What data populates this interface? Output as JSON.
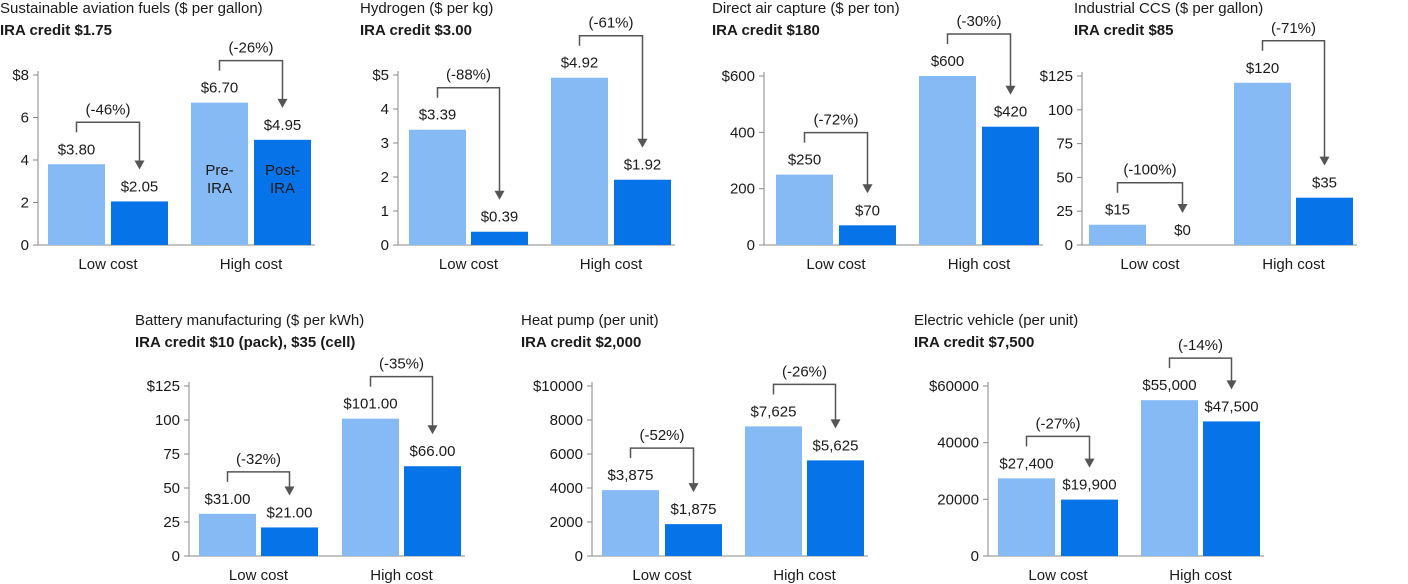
{
  "colors": {
    "pre": "#86baf5",
    "post": "#0773e8",
    "axis": "#888888",
    "arrow": "#555555",
    "text": "#1a1a1a",
    "inbar_text": "#ffffff"
  },
  "chart_data": [
    {
      "type": "bar",
      "title": "Sustainable aviation fuels ($ per gallon)",
      "subtitle": "IRA credit $1.75",
      "categories": [
        "Low cost",
        "High cost"
      ],
      "series": [
        {
          "name": "Pre-IRA",
          "values": [
            3.8,
            6.7
          ]
        },
        {
          "name": "Post-IRA",
          "values": [
            2.05,
            4.95
          ]
        }
      ],
      "value_labels": [
        [
          "$3.80",
          "$2.05"
        ],
        [
          "$6.70",
          "$4.95"
        ]
      ],
      "changes": [
        "(-46%)",
        "(-26%)"
      ],
      "yticks": [
        0,
        2,
        4,
        6,
        8
      ],
      "ytick_labels": [
        "0",
        "2",
        "4",
        "6",
        "$8"
      ],
      "ylim": [
        0,
        8
      ],
      "inbar_labels": [
        "Pre-IRA",
        "Post-IRA"
      ]
    },
    {
      "type": "bar",
      "title": "Hydrogen ($ per kg)",
      "subtitle": "IRA credit $3.00",
      "categories": [
        "Low cost",
        "High cost"
      ],
      "series": [
        {
          "values": [
            3.39,
            4.92
          ]
        },
        {
          "values": [
            0.39,
            1.92
          ]
        }
      ],
      "value_labels": [
        [
          "$3.39",
          "$0.39"
        ],
        [
          "$4.92",
          "$1.92"
        ]
      ],
      "changes": [
        "(-88%)",
        "(-61%)"
      ],
      "yticks": [
        0,
        1,
        2,
        3,
        4,
        5
      ],
      "ytick_labels": [
        "0",
        "1",
        "2",
        "3",
        "4",
        "$5"
      ],
      "ylim": [
        0,
        5
      ]
    },
    {
      "type": "bar",
      "title": "Direct air capture ($ per ton)",
      "subtitle": "IRA credit $180",
      "categories": [
        "Low cost",
        "High cost"
      ],
      "series": [
        {
          "values": [
            250,
            600
          ]
        },
        {
          "values": [
            70,
            420
          ]
        }
      ],
      "value_labels": [
        [
          "$250",
          "$70"
        ],
        [
          "$600",
          "$420"
        ]
      ],
      "changes": [
        "(-72%)",
        "(-30%)"
      ],
      "yticks": [
        0,
        200,
        400,
        600
      ],
      "ytick_labels": [
        "0",
        "200",
        "400",
        "$600"
      ],
      "ylim": [
        0,
        600
      ]
    },
    {
      "type": "bar",
      "title": "Industrial CCS ($ per gallon)",
      "subtitle": "IRA credit $85",
      "categories": [
        "Low cost",
        "High cost"
      ],
      "series": [
        {
          "values": [
            15,
            120
          ]
        },
        {
          "values": [
            0,
            35
          ]
        }
      ],
      "value_labels": [
        [
          "$15",
          "$0"
        ],
        [
          "$120",
          "$35"
        ]
      ],
      "changes": [
        "(-100%)",
        "(-71%)"
      ],
      "yticks": [
        0,
        25,
        50,
        75,
        100,
        125
      ],
      "ytick_labels": [
        "0",
        "25",
        "50",
        "75",
        "100",
        "$125"
      ],
      "ylim": [
        0,
        125
      ]
    },
    {
      "type": "bar",
      "title": "Battery manufacturing ($ per kWh)",
      "subtitle": "IRA credit $10 (pack), $35 (cell)",
      "categories": [
        "Low cost",
        "High cost"
      ],
      "series": [
        {
          "values": [
            31,
            101
          ]
        },
        {
          "values": [
            21,
            66
          ]
        }
      ],
      "value_labels": [
        [
          "$31.00",
          "$21.00"
        ],
        [
          "$101.00",
          "$66.00"
        ]
      ],
      "changes": [
        "(-32%)",
        "(-35%)"
      ],
      "yticks": [
        0,
        25,
        50,
        75,
        100,
        125
      ],
      "ytick_labels": [
        "0",
        "25",
        "50",
        "75",
        "100",
        "$125"
      ],
      "ylim": [
        0,
        125
      ]
    },
    {
      "type": "bar",
      "title": "Heat pump (per unit)",
      "subtitle": "IRA credit $2,000",
      "categories": [
        "Low cost",
        "High cost"
      ],
      "series": [
        {
          "values": [
            3875,
            7625
          ]
        },
        {
          "values": [
            1875,
            5625
          ]
        }
      ],
      "value_labels": [
        [
          "$3,875",
          "$1,875"
        ],
        [
          "$7,625",
          "$5,625"
        ]
      ],
      "changes": [
        "(-52%)",
        "(-26%)"
      ],
      "yticks": [
        0,
        2000,
        4000,
        6000,
        8000,
        10000
      ],
      "ytick_labels": [
        "0",
        "2000",
        "4000",
        "6000",
        "8000",
        "$10000"
      ],
      "ylim": [
        0,
        10000
      ]
    },
    {
      "type": "bar",
      "title": "Electric vehicle (per unit)",
      "subtitle": "IRA credit $7,500",
      "categories": [
        "Low cost",
        "High cost"
      ],
      "series": [
        {
          "values": [
            27400,
            55000
          ]
        },
        {
          "values": [
            19900,
            47500
          ]
        }
      ],
      "value_labels": [
        [
          "$27,400",
          "$19,900"
        ],
        [
          "$55,000",
          "$47,500"
        ]
      ],
      "changes": [
        "(-27%)",
        "(-14%)"
      ],
      "yticks": [
        0,
        20000,
        40000,
        60000
      ],
      "ytick_labels": [
        "0",
        "20000",
        "40000",
        "$60000"
      ],
      "ylim": [
        0,
        60000
      ]
    }
  ]
}
